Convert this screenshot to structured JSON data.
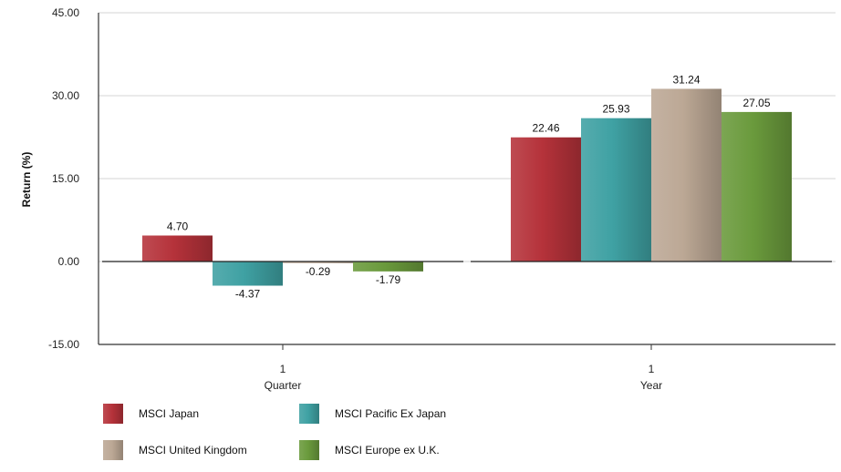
{
  "chart_data": {
    "type": "bar",
    "ylabel": "Return (%)",
    "ylim": [
      -15,
      45
    ],
    "yticks": [
      "45.00",
      "30.00",
      "15.00",
      "0.00",
      "-15.00"
    ],
    "ytick_values": [
      45,
      30,
      15,
      0,
      -15
    ],
    "grid": "horizontal",
    "legend_position": "bottom",
    "groups": [
      {
        "tick": "1",
        "label": "Quarter"
      },
      {
        "tick": "1",
        "label": "Year"
      }
    ],
    "series": [
      {
        "name": "MSCI Japan",
        "color": "#b5323a",
        "values": [
          4.7,
          22.46
        ],
        "labels": [
          "4.70",
          "22.46"
        ]
      },
      {
        "name": "MSCI Pacific Ex Japan",
        "color": "#3fa1a3",
        "values": [
          -4.37,
          25.93
        ],
        "labels": [
          "-4.37",
          "25.93"
        ]
      },
      {
        "name": "MSCI United Kingdom",
        "color": "#bca895",
        "values": [
          -0.29,
          31.24
        ],
        "labels": [
          "-0.29",
          "31.24"
        ]
      },
      {
        "name": "MSCI Europe ex U.K.",
        "color": "#6a9a3c",
        "values": [
          -1.79,
          27.05
        ],
        "labels": [
          "-1.79",
          "27.05"
        ]
      }
    ]
  }
}
